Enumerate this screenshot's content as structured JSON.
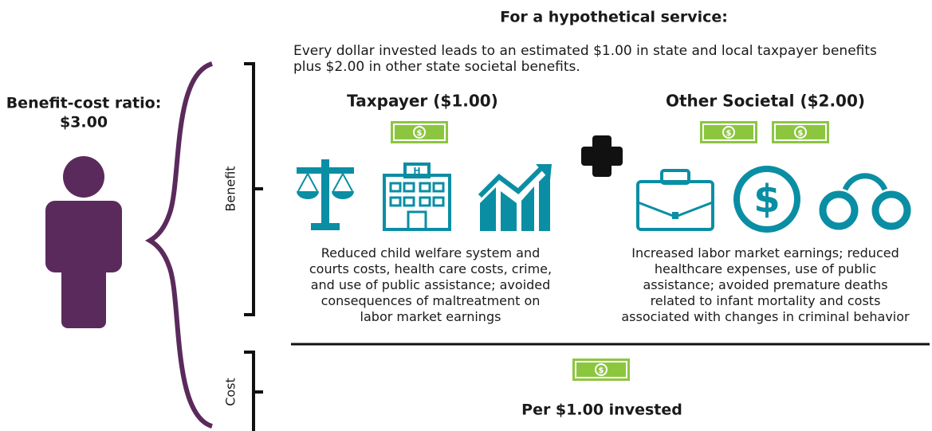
{
  "header": {
    "title": "For a hypothetical service:",
    "intro": [
      "Every dollar invested leads to an estimated $1.00 in state and local taxpayer benefits",
      "plus $2.00 in other state societal benefits."
    ]
  },
  "ratio": {
    "label": "Benefit-cost ratio:",
    "value": "$3.00"
  },
  "axis": {
    "benefit": "Benefit",
    "cost": "Cost"
  },
  "taxpayer": {
    "title": "Taxpayer ($1.00)",
    "description": [
      "Reduced child welfare system and",
      "courts costs, health care costs, crime,",
      "and use of public assistance; avoided",
      "consequences of maltreatment on",
      "labor market earnings"
    ]
  },
  "societal": {
    "title": "Other Societal ($2.00)",
    "description": [
      "Increased labor market earnings; reduced",
      "healthcare expenses, use of public",
      "assistance; avoided premature deaths",
      "related to infant mortality and costs",
      "associated with changes in criminal behavior"
    ]
  },
  "cost": {
    "label": "Per $1.00 invested"
  }
}
